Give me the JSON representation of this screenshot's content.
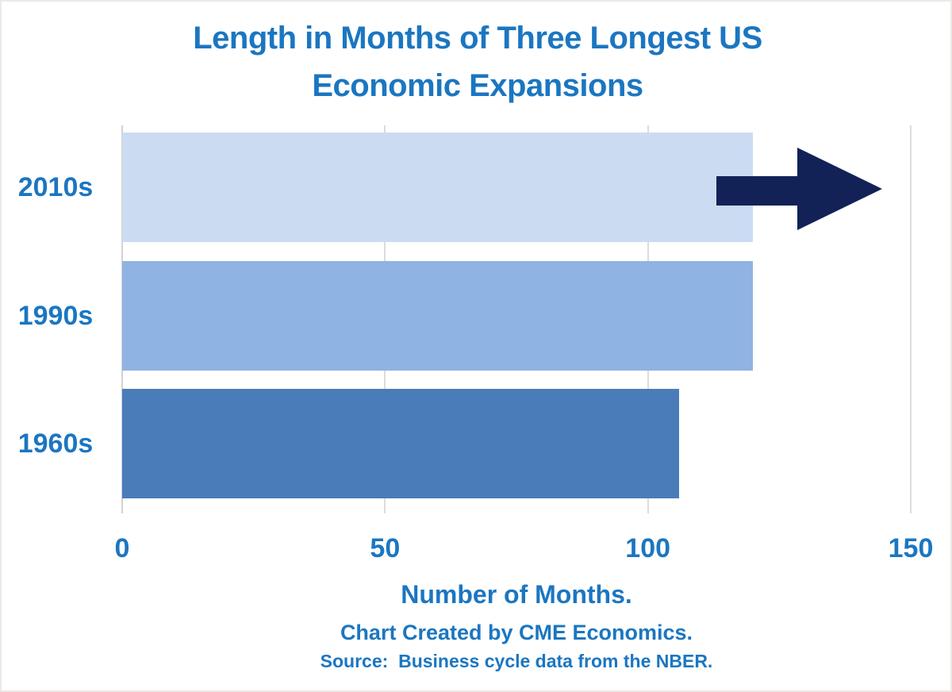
{
  "page": {
    "background": "#ffffff",
    "border_color": "#ece8e6"
  },
  "header": {
    "title_line1": "Length in Months of Three Longest US",
    "title_line2": "Economic Expansions"
  },
  "chart_data": {
    "type": "bar",
    "orientation": "horizontal",
    "title": "Length in Months of Three Longest US Economic Expansions",
    "categories": [
      "2010s",
      "1990s",
      "1960s"
    ],
    "values": [
      120,
      120,
      106
    ],
    "bar_colors": [
      "#cbdcf2",
      "#8fb3e2",
      "#4a7cba"
    ],
    "xlabel": "Number of Months.",
    "xlim": [
      0,
      150
    ],
    "x_ticks": [
      0,
      50,
      100,
      150
    ],
    "x_tick_labels": [
      "0",
      "50",
      "100",
      "150"
    ],
    "grid": true,
    "legend": false,
    "annotations": [
      {
        "type": "arrow",
        "row_index": 0,
        "direction": "right",
        "color": "#122257"
      }
    ]
  },
  "footer": {
    "credit": "Chart Created by CME Economics.",
    "source": "Source:  Business cycle data from the NBER."
  },
  "colors": {
    "text_blue": "#1b76c1",
    "gridline": "#dcdcdc",
    "arrow_navy": "#122257"
  }
}
